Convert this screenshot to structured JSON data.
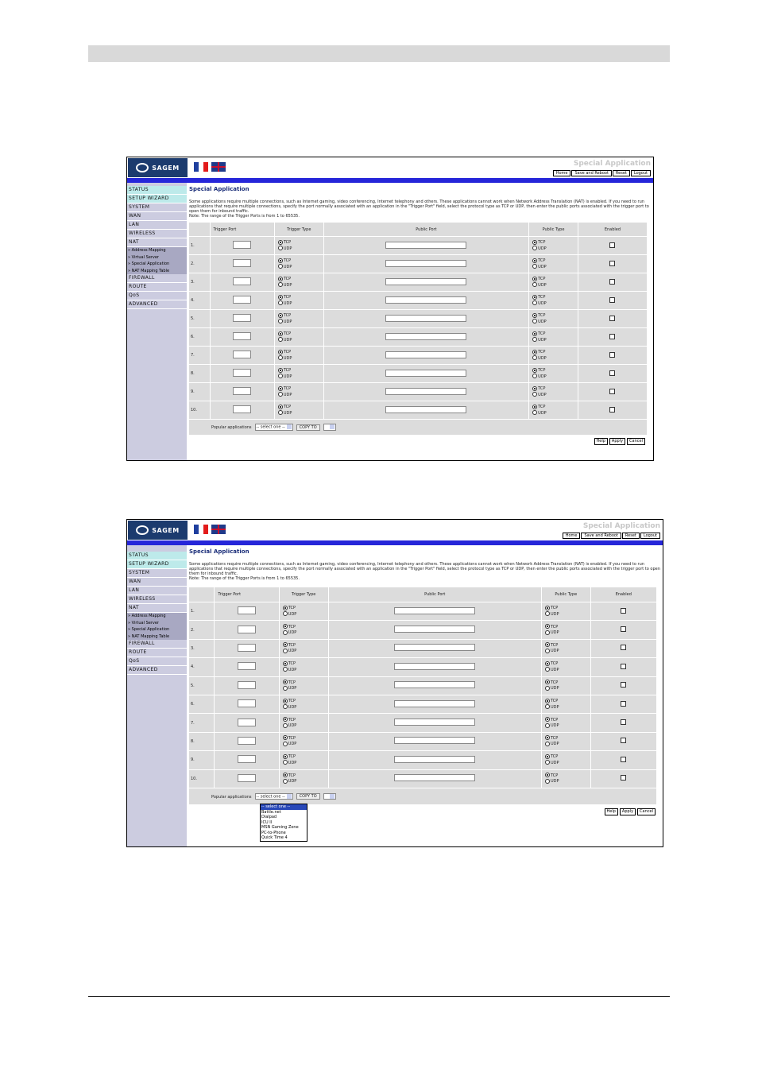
{
  "app": {
    "logo": "SAGEM",
    "page_heading": "Special Application",
    "links": [
      "Home",
      "Save and Reboot",
      "Reset",
      "Logout"
    ]
  },
  "sidebar": {
    "items": [
      "STATUS",
      "SETUP WIZARD",
      "SYSTEM",
      "WAN",
      "LAN",
      "WIRELESS",
      "NAT"
    ],
    "nat_sub": [
      "» Address Mapping",
      "» Virtual Server",
      "» Special Application",
      "» NAT Mapping Table"
    ],
    "items_after": [
      "FIREWALL",
      "ROUTE",
      "QoS",
      "ADVANCED"
    ]
  },
  "main": {
    "title": "Special Application",
    "description": "Some applications require multiple connections, such as Internet gaming, video conferencing, Internet telephony and others. These applications cannot work when Network Address Translation (NAT) is enabled. If you need to run applications that require multiple connections, specify the port normally associated with an application in the \"Trigger Port\" field, select the protocol type as TCP or UDP, then enter the public ports associated with the trigger port to open them for inbound traffic.",
    "note": "Note: The range of the Trigger Ports is from 1 to 65535."
  },
  "table": {
    "headers": {
      "trigger_port": "Trigger Port",
      "trigger_type": "Trigger Type",
      "public_port": "Public Port",
      "public_type": "Public Type",
      "enabled": "Enabled"
    },
    "rows": [
      "1.",
      "2.",
      "3.",
      "4.",
      "5.",
      "6.",
      "7.",
      "8.",
      "9.",
      "10."
    ],
    "tcp_label": "TCP",
    "udp_label": "UDP",
    "default_protocol": "TCP"
  },
  "popular": {
    "label": "Popular applications",
    "select_value": "-- select one --",
    "copy_to": "COPY TO",
    "options": [
      "-- select one --",
      "Battle.net",
      "Dialpad",
      "ICU II",
      "MSN Gaming Zone",
      "PC-to-Phone",
      "Quick Time 4"
    ]
  },
  "buttons": [
    "Help",
    "Apply",
    "Cancel"
  ]
}
